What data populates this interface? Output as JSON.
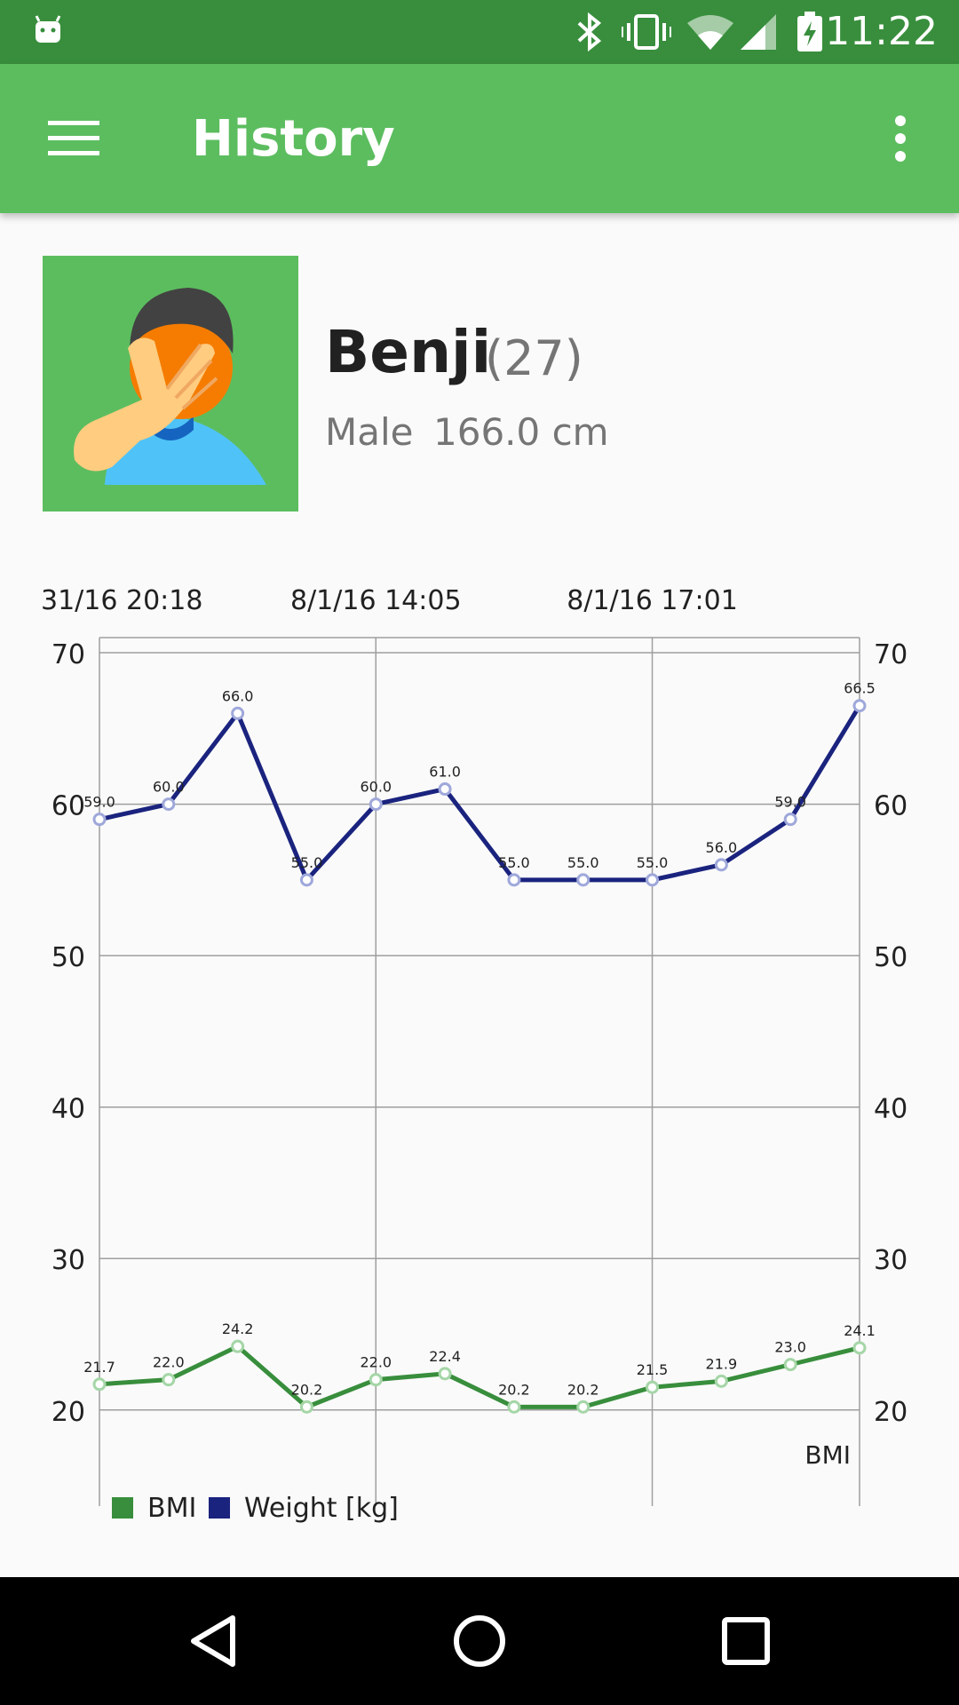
{
  "status_bar": {
    "time": "11:22"
  },
  "app_bar": {
    "title": "History"
  },
  "profile": {
    "name": "Benji",
    "age": "(27)",
    "gender": "Male",
    "height": "166.0 cm"
  },
  "chart_data": {
    "type": "line",
    "x_labels": [
      "31/16 20:18",
      "8/1/16 14:05",
      "8/1/16 17:01"
    ],
    "y_ticks": [
      20,
      30,
      40,
      50,
      60,
      70
    ],
    "ylim": [
      16,
      71
    ],
    "y_axis_label": "BMI",
    "series": [
      {
        "name": "Weight [kg]",
        "color": "#1a237e",
        "values": [
          59.0,
          60.0,
          66.0,
          55.0,
          60.0,
          61.0,
          55.0,
          55.0,
          55.0,
          56.0,
          59.0,
          66.5
        ]
      },
      {
        "name": "BMI",
        "color": "#388e3c",
        "values": [
          21.7,
          22.0,
          24.2,
          20.2,
          22.0,
          22.4,
          20.2,
          20.2,
          21.5,
          21.9,
          23.0,
          24.1
        ]
      }
    ],
    "legend": [
      {
        "label": "BMI",
        "color": "#388e3c"
      },
      {
        "label": "Weight [kg]",
        "color": "#1a237e"
      }
    ],
    "legend_position": "bottom-left",
    "grid": true
  }
}
